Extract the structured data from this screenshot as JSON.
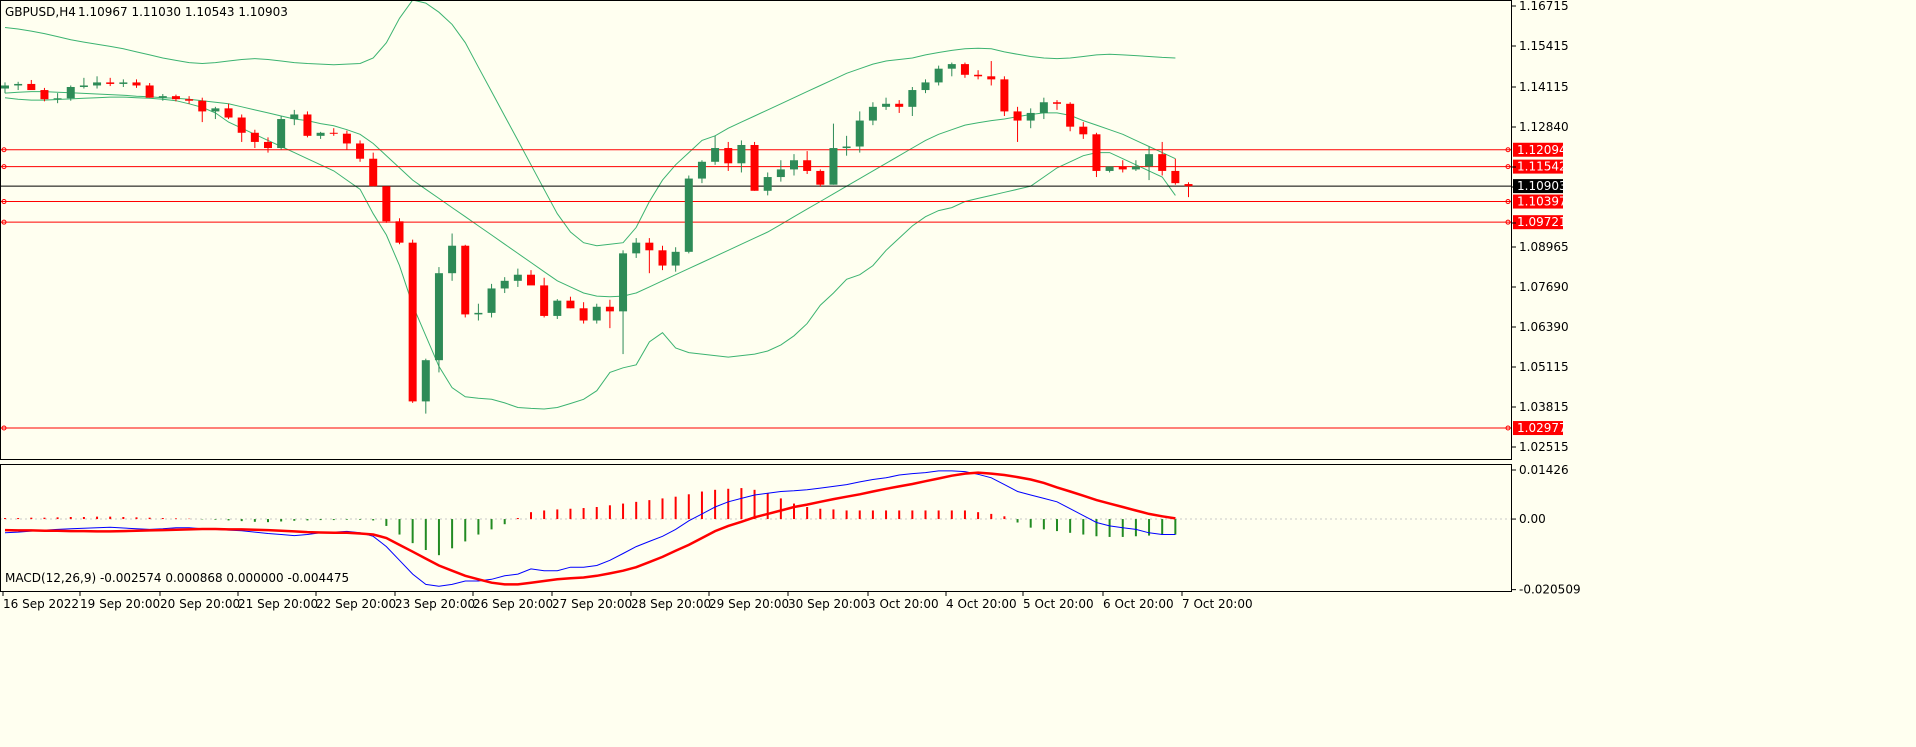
{
  "header": {
    "symbol": "GBPUSD,H4",
    "ohlc": "1.10967 1.11030 1.10543 1.10903"
  },
  "macd_header": "MACD(12,26,9) -0.002574 0.000868 0.000000 -0.004475",
  "colors": {
    "background": "#fffff0",
    "bull": "#2e8b57",
    "bear": "#ff0000",
    "band": "#3cb371",
    "hline": "#ff0000",
    "macd_main": "#0000ff",
    "macd_signal": "#ff0000"
  },
  "chart_data": [
    {
      "type": "candlestick",
      "ylim": [
        1.0193,
        1.17
      ],
      "yticks": [
        "1.16715",
        "1.15415",
        "1.14115",
        "1.12840",
        "1.11542",
        "1.10903",
        "1.09721",
        "1.08965",
        "1.07690",
        "1.06390",
        "1.05115",
        "1.03815",
        "1.02515"
      ],
      "xlabels": [
        "16 Sep 2022",
        "19 Sep 20:00",
        "20 Sep 20:00",
        "21 Sep 20:00",
        "22 Sep 20:00",
        "23 Sep 20:00",
        "26 Sep 20:00",
        "27 Sep 20:00",
        "28 Sep 20:00",
        "29 Sep 20:00",
        "30 Sep 20:00",
        "3 Oct 20:00",
        "4 Oct 20:00",
        "5 Oct 20:00",
        "6 Oct 20:00",
        "7 Oct 20:00"
      ],
      "candles": [
        [
          1.141,
          1.143,
          1.1395,
          1.142
        ],
        [
          1.142,
          1.1432,
          1.1405,
          1.1425
        ],
        [
          1.1425,
          1.1438,
          1.141,
          1.1405
        ],
        [
          1.1405,
          1.1412,
          1.1368,
          1.1375
        ],
        [
          1.1375,
          1.1395,
          1.1362,
          1.1378
        ],
        [
          1.1378,
          1.142,
          1.137,
          1.1415
        ],
        [
          1.1415,
          1.1445,
          1.141,
          1.142
        ],
        [
          1.142,
          1.145,
          1.141,
          1.143
        ],
        [
          1.143,
          1.1445,
          1.1418,
          1.1425
        ],
        [
          1.1425,
          1.144,
          1.1415,
          1.143
        ],
        [
          1.143,
          1.144,
          1.1412,
          1.142
        ],
        [
          1.142,
          1.1428,
          1.138,
          1.138
        ],
        [
          1.138,
          1.1392,
          1.137,
          1.1385
        ],
        [
          1.1385,
          1.139,
          1.1368,
          1.1375
        ],
        [
          1.1375,
          1.1385,
          1.136,
          1.137
        ],
        [
          1.137,
          1.138,
          1.13,
          1.1335
        ],
        [
          1.1335,
          1.135,
          1.131,
          1.1345
        ],
        [
          1.1345,
          1.136,
          1.131,
          1.1315
        ],
        [
          1.1315,
          1.1325,
          1.1235,
          1.1265
        ],
        [
          1.1265,
          1.1275,
          1.1215,
          1.1235
        ],
        [
          1.1235,
          1.125,
          1.12,
          1.1215
        ],
        [
          1.1215,
          1.132,
          1.121,
          1.131
        ],
        [
          1.131,
          1.134,
          1.129,
          1.1325
        ],
        [
          1.1325,
          1.1335,
          1.125,
          1.1255
        ],
        [
          1.1255,
          1.1268,
          1.1245,
          1.1265
        ],
        [
          1.1265,
          1.128,
          1.1255,
          1.1262
        ],
        [
          1.1262,
          1.1272,
          1.121,
          1.123
        ],
        [
          1.123,
          1.124,
          1.117,
          1.118
        ],
        [
          1.118,
          1.12,
          1.109,
          1.109
        ],
        [
          1.109,
          1.108,
          1.097,
          1.0975
        ],
        [
          1.0975,
          1.0985,
          1.09,
          1.0905
        ],
        [
          1.0905,
          1.0915,
          1.038,
          1.0385
        ],
        [
          1.0385,
          1.0525,
          1.0345,
          1.052
        ],
        [
          1.052,
          1.0825,
          1.048,
          1.0805
        ],
        [
          1.0805,
          1.0935,
          1.078,
          1.0895
        ],
        [
          1.0895,
          1.0898,
          1.066,
          1.067
        ],
        [
          1.067,
          1.0705,
          1.065,
          1.0675
        ],
        [
          1.0675,
          1.077,
          1.066,
          1.0755
        ],
        [
          1.0755,
          1.0792,
          1.074,
          1.078
        ],
        [
          1.078,
          1.082,
          1.076,
          1.08
        ],
        [
          1.08,
          1.0815,
          1.077,
          1.0765
        ],
        [
          1.0765,
          1.079,
          1.066,
          1.0665
        ],
        [
          1.0665,
          1.072,
          1.0655,
          1.0715
        ],
        [
          1.0715,
          1.0728,
          1.069,
          1.069
        ],
        [
          1.069,
          1.071,
          1.064,
          1.065
        ],
        [
          1.065,
          1.0705,
          1.064,
          1.0695
        ],
        [
          1.0695,
          1.0718,
          1.0625,
          1.068
        ],
        [
          1.068,
          1.088,
          1.054,
          1.087
        ],
        [
          1.087,
          1.092,
          1.0855,
          1.0905
        ],
        [
          1.0905,
          1.092,
          1.0805,
          1.088
        ],
        [
          1.088,
          1.0895,
          1.0815,
          1.083
        ],
        [
          1.083,
          1.089,
          1.081,
          1.0875
        ],
        [
          1.0875,
          1.1125,
          1.087,
          1.1115
        ],
        [
          1.1115,
          1.1175,
          1.11,
          1.117
        ],
        [
          1.117,
          1.1255,
          1.116,
          1.1215
        ],
        [
          1.1215,
          1.1235,
          1.114,
          1.1165
        ],
        [
          1.1165,
          1.124,
          1.1135,
          1.1225
        ],
        [
          1.1225,
          1.1235,
          1.1075,
          1.1075
        ],
        [
          1.1075,
          1.1135,
          1.106,
          1.112
        ],
        [
          1.112,
          1.1175,
          1.1105,
          1.1145
        ],
        [
          1.1145,
          1.1195,
          1.1125,
          1.1175
        ],
        [
          1.1175,
          1.1205,
          1.113,
          1.114
        ],
        [
          1.114,
          1.1145,
          1.1088,
          1.1095
        ],
        [
          1.1095,
          1.1295,
          1.1095,
          1.1215
        ],
        [
          1.1215,
          1.1255,
          1.119,
          1.122
        ],
        [
          1.122,
          1.1335,
          1.12,
          1.1305
        ],
        [
          1.1305,
          1.1365,
          1.129,
          1.135
        ],
        [
          1.135,
          1.138,
          1.134,
          1.136
        ],
        [
          1.136,
          1.1372,
          1.133,
          1.135
        ],
        [
          1.135,
          1.1415,
          1.132,
          1.1405
        ],
        [
          1.1405,
          1.144,
          1.1395,
          1.143
        ],
        [
          1.143,
          1.1485,
          1.142,
          1.1475
        ],
        [
          1.1475,
          1.1495,
          1.145,
          1.149
        ],
        [
          1.149,
          1.1495,
          1.1445,
          1.1455
        ],
        [
          1.1455,
          1.147,
          1.144,
          1.145
        ],
        [
          1.145,
          1.15,
          1.142,
          1.144
        ],
        [
          1.144,
          1.145,
          1.132,
          1.1335
        ],
        [
          1.1335,
          1.135,
          1.1235,
          1.1305
        ],
        [
          1.1305,
          1.1345,
          1.128,
          1.133
        ],
        [
          1.133,
          1.138,
          1.131,
          1.1365
        ],
        [
          1.1365,
          1.1372,
          1.134,
          1.136
        ],
        [
          1.136,
          1.1365,
          1.127,
          1.1285
        ],
        [
          1.1285,
          1.13,
          1.1245,
          1.126
        ],
        [
          1.126,
          1.1265,
          1.112,
          1.114
        ],
        [
          1.114,
          1.115,
          1.1135,
          1.1155
        ],
        [
          1.1155,
          1.1175,
          1.1135,
          1.1145
        ],
        [
          1.1145,
          1.1175,
          1.114,
          1.1155
        ],
        [
          1.1155,
          1.122,
          1.111,
          1.1195
        ],
        [
          1.1195,
          1.1235,
          1.1125,
          1.114
        ],
        [
          1.114,
          1.118,
          1.1095,
          1.11
        ],
        [
          1.1097,
          1.1103,
          1.1054,
          1.109
        ]
      ],
      "bb_upper": [
        1.161,
        1.1605,
        1.1598,
        1.159,
        1.158,
        1.157,
        1.1562,
        1.1555,
        1.1548,
        1.154,
        1.153,
        1.152,
        1.151,
        1.1502,
        1.1495,
        1.1492,
        1.1495,
        1.15,
        1.1505,
        1.1508,
        1.1505,
        1.15,
        1.1495,
        1.1492,
        1.149,
        1.1488,
        1.149,
        1.1492,
        1.151,
        1.156,
        1.164,
        1.17,
        1.169,
        1.166,
        1.162,
        1.156,
        1.148,
        1.14,
        1.132,
        1.124,
        1.116,
        1.108,
        1.1,
        1.094,
        1.0905,
        1.0895,
        1.09,
        1.0905,
        1.0955,
        1.104,
        1.111,
        1.116,
        1.12,
        1.124,
        1.1255,
        1.128,
        1.13,
        1.132,
        1.134,
        1.136,
        1.138,
        1.14,
        1.142,
        1.144,
        1.146,
        1.1475,
        1.149,
        1.15,
        1.1505,
        1.151,
        1.152,
        1.1528,
        1.1535,
        1.154,
        1.1542,
        1.154,
        1.153,
        1.1522,
        1.1515,
        1.151,
        1.1508,
        1.151,
        1.1515,
        1.152,
        1.1522,
        1.152,
        1.1518,
        1.1515,
        1.1512,
        1.151
      ],
      "bb_middle": [
        1.1395,
        1.1398,
        1.14,
        1.14,
        1.1398,
        1.1396,
        1.1394,
        1.1392,
        1.139,
        1.1388,
        1.1385,
        1.1383,
        1.138,
        1.1378,
        1.1375,
        1.137,
        1.1365,
        1.136,
        1.135,
        1.134,
        1.133,
        1.132,
        1.131,
        1.1305,
        1.1295,
        1.1288,
        1.1275,
        1.126,
        1.123,
        1.119,
        1.115,
        1.111,
        1.108,
        1.105,
        1.102,
        1.099,
        1.096,
        1.093,
        1.09,
        1.087,
        1.084,
        1.081,
        1.078,
        1.076,
        1.074,
        1.073,
        1.0728,
        1.073,
        1.074,
        1.076,
        1.078,
        1.08,
        1.082,
        1.084,
        1.086,
        1.088,
        1.09,
        1.092,
        1.094,
        1.0965,
        1.099,
        1.1015,
        1.104,
        1.1065,
        1.109,
        1.1115,
        1.114,
        1.1165,
        1.119,
        1.1215,
        1.124,
        1.126,
        1.1275,
        1.129,
        1.1298,
        1.1305,
        1.131,
        1.1318,
        1.1325,
        1.133,
        1.133,
        1.1322,
        1.1305,
        1.129,
        1.1275,
        1.126,
        1.124,
        1.122,
        1.12,
        1.118
      ],
      "bb_lower": [
        1.138,
        1.1375,
        1.1372,
        1.1372,
        1.1374,
        1.1376,
        1.1378,
        1.138,
        1.1382,
        1.1382,
        1.138,
        1.1378,
        1.1375,
        1.137,
        1.136,
        1.1348,
        1.133,
        1.13,
        1.128,
        1.126,
        1.124,
        1.122,
        1.12,
        1.118,
        1.116,
        1.114,
        1.111,
        1.108,
        1.1,
        1.093,
        1.083,
        1.07,
        1.06,
        1.05,
        1.043,
        1.04,
        1.0395,
        1.0392,
        1.038,
        1.0365,
        1.0362,
        1.036,
        1.0365,
        1.0378,
        1.0392,
        1.042,
        1.048,
        1.0495,
        1.0505,
        1.058,
        1.061,
        1.056,
        1.0545,
        1.054,
        1.0535,
        1.053,
        1.0535,
        1.054,
        1.055,
        1.057,
        1.06,
        1.064,
        1.07,
        1.074,
        1.0785,
        1.08,
        1.083,
        1.088,
        1.092,
        1.096,
        1.099,
        1.101,
        1.102,
        1.104,
        1.105,
        1.106,
        1.107,
        1.108,
        1.109,
        1.112,
        1.115,
        1.117,
        1.119,
        1.12,
        1.12,
        1.118,
        1.116,
        1.114,
        1.112,
        1.106
      ],
      "hlines": [
        {
          "value": 1.12094,
          "label": "1.12094"
        },
        {
          "value": 1.11542,
          "label": "1.11542"
        },
        {
          "value": 1.10397,
          "label": "1.10397"
        },
        {
          "value": 1.09721,
          "label": "1.09721"
        },
        {
          "value": 1.02977,
          "label": "1.02977"
        }
      ],
      "current_price": {
        "value": 1.10903,
        "label": "1.10903"
      }
    },
    {
      "type": "macd",
      "title": "MACD(12,26,9)",
      "ylim": [
        -0.0212,
        0.016
      ],
      "yticks": [
        "0.01426",
        "0.00",
        "-0.020509"
      ],
      "histogram": [
        0.0003,
        0.0003,
        0.0004,
        0.0004,
        0.0005,
        0.0006,
        0.0006,
        0.0007,
        0.0007,
        0.0006,
        0.0005,
        0.0004,
        0.0003,
        0.0002,
        0.0001,
        -0.0001,
        -0.0002,
        -0.0004,
        -0.0006,
        -0.0008,
        -0.0009,
        -0.0007,
        -0.0005,
        -0.0004,
        -0.0003,
        -0.0003,
        -0.0002,
        -0.0002,
        -0.0004,
        -0.002,
        -0.0045,
        -0.007,
        -0.009,
        -0.0105,
        -0.0085,
        -0.0065,
        -0.0045,
        -0.003,
        -0.0015,
        0.0003,
        0.002,
        0.0025,
        0.0028,
        0.003,
        0.0032,
        0.0035,
        0.004,
        0.0045,
        0.005,
        0.0055,
        0.006,
        0.0065,
        0.0072,
        0.008,
        0.0085,
        0.0088,
        0.009,
        0.0085,
        0.0075,
        0.006,
        0.0045,
        0.0035,
        0.003,
        0.0028,
        0.0025,
        0.0025,
        0.0025,
        0.0025,
        0.0025,
        0.0025,
        0.0025,
        0.0025,
        0.0025,
        0.0025,
        0.002,
        0.0015,
        0.0008,
        -0.001,
        -0.0025,
        -0.003,
        -0.0035,
        -0.004,
        -0.0045,
        -0.005,
        -0.0052,
        -0.0052,
        -0.005,
        -0.0048,
        -0.0046,
        -0.0045
      ],
      "main": [
        -0.004,
        -0.0038,
        -0.0035,
        -0.0032,
        -0.003,
        -0.0028,
        -0.0027,
        -0.0025,
        -0.0024,
        -0.0026,
        -0.0028,
        -0.003,
        -0.0028,
        -0.0025,
        -0.0025,
        -0.0028,
        -0.003,
        -0.0032,
        -0.0034,
        -0.0038,
        -0.0042,
        -0.0045,
        -0.0048,
        -0.0045,
        -0.004,
        -0.0038,
        -0.0036,
        -0.004,
        -0.005,
        -0.008,
        -0.012,
        -0.016,
        -0.019,
        -0.0195,
        -0.019,
        -0.018,
        -0.018,
        -0.0175,
        -0.0165,
        -0.016,
        -0.0145,
        -0.015,
        -0.015,
        -0.014,
        -0.014,
        -0.0135,
        -0.012,
        -0.01,
        -0.008,
        -0.0065,
        -0.005,
        -0.003,
        -0.0005,
        0.0015,
        0.0035,
        0.005,
        0.006,
        0.007,
        0.0075,
        0.008,
        0.0082,
        0.0085,
        0.009,
        0.0095,
        0.01,
        0.0108,
        0.0115,
        0.012,
        0.0128,
        0.0132,
        0.0135,
        0.014,
        0.014,
        0.0138,
        0.013,
        0.012,
        0.01,
        0.008,
        0.007,
        0.006,
        0.005,
        0.003,
        0.001,
        -0.001,
        -0.002,
        -0.0025,
        -0.003,
        -0.004,
        -0.0045,
        -0.0045
      ],
      "signal": [
        -0.0032,
        -0.0033,
        -0.0033,
        -0.0034,
        -0.0034,
        -0.0035,
        -0.0035,
        -0.0036,
        -0.0036,
        -0.0035,
        -0.0034,
        -0.0033,
        -0.0032,
        -0.0031,
        -0.003,
        -0.0029,
        -0.0029,
        -0.003,
        -0.003,
        -0.0031,
        -0.0032,
        -0.0034,
        -0.0036,
        -0.0038,
        -0.0039,
        -0.004,
        -0.004,
        -0.0042,
        -0.0045,
        -0.0055,
        -0.0075,
        -0.0095,
        -0.0115,
        -0.0135,
        -0.015,
        -0.0165,
        -0.0175,
        -0.0185,
        -0.019,
        -0.019,
        -0.0185,
        -0.018,
        -0.0175,
        -0.0172,
        -0.017,
        -0.0165,
        -0.0158,
        -0.015,
        -0.014,
        -0.0125,
        -0.011,
        -0.0092,
        -0.0075,
        -0.0055,
        -0.0035,
        -0.002,
        -0.0008,
        0.0005,
        0.0015,
        0.0025,
        0.0035,
        0.0042,
        0.005,
        0.0058,
        0.0065,
        0.0072,
        0.008,
        0.0088,
        0.0095,
        0.0102,
        0.011,
        0.0118,
        0.0126,
        0.0132,
        0.0135,
        0.0132,
        0.0128,
        0.0122,
        0.0115,
        0.0105,
        0.0092,
        0.008,
        0.0068,
        0.0055,
        0.0045,
        0.0035,
        0.0025,
        0.0015,
        0.0008,
        0.0002
      ]
    }
  ]
}
